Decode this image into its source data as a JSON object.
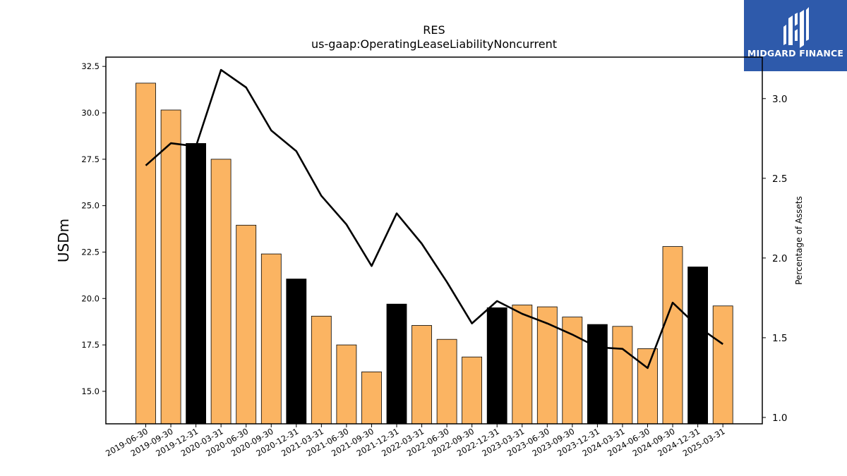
{
  "brand": {
    "name": "MIDGARD FINANCE",
    "color": "#2e5aab"
  },
  "chart_data": {
    "type": "bar",
    "title": "RES",
    "subtitle": "us-gaap:OperatingLeaseLiabilityNoncurrent",
    "ylabel": "USDm",
    "y2label": "Percentage of Assets",
    "ylim": [
      13.25,
      33.0
    ],
    "y2lim": [
      0.96,
      3.26
    ],
    "yticks": [
      "15.0",
      "17.5",
      "20.0",
      "22.5",
      "25.0",
      "27.5",
      "30.0",
      "32.5"
    ],
    "y2ticks": [
      "1.0",
      "1.5",
      "2.0",
      "2.5",
      "3.0"
    ],
    "categories": [
      "2019-06-30",
      "2019-09-30",
      "2019-12-31",
      "2020-03-31",
      "2020-06-30",
      "2020-09-30",
      "2020-12-31",
      "2021-03-31",
      "2021-06-30",
      "2021-09-30",
      "2021-12-31",
      "2022-03-31",
      "2022-06-30",
      "2022-09-30",
      "2022-12-31",
      "2023-03-31",
      "2023-06-30",
      "2023-09-30",
      "2023-12-31",
      "2024-03-31",
      "2024-06-30",
      "2024-09-30",
      "2024-12-31",
      "2025-03-31"
    ],
    "colors": {
      "quarter": "#fbb462",
      "year_end": "#000000",
      "line": "#000000"
    },
    "series": [
      {
        "type": "bar",
        "axis": "left",
        "values": [
          31.6,
          30.15,
          28.35,
          27.5,
          23.95,
          22.4,
          21.05,
          19.05,
          17.5,
          16.05,
          19.7,
          18.55,
          17.8,
          16.85,
          19.5,
          19.65,
          19.55,
          19.0,
          18.6,
          18.5,
          17.3,
          22.8,
          21.7,
          19.6
        ]
      },
      {
        "type": "line",
        "axis": "right",
        "values": [
          2.58,
          2.72,
          2.7,
          3.18,
          3.07,
          2.8,
          2.67,
          2.39,
          2.21,
          1.95,
          2.28,
          2.09,
          1.85,
          1.59,
          1.73,
          1.65,
          1.59,
          1.52,
          1.44,
          1.43,
          1.31,
          1.72,
          1.57,
          1.46
        ]
      }
    ],
    "year_end_flags": [
      false,
      false,
      true,
      false,
      false,
      false,
      true,
      false,
      false,
      false,
      true,
      false,
      false,
      false,
      true,
      false,
      false,
      false,
      true,
      false,
      false,
      false,
      true,
      false
    ]
  }
}
